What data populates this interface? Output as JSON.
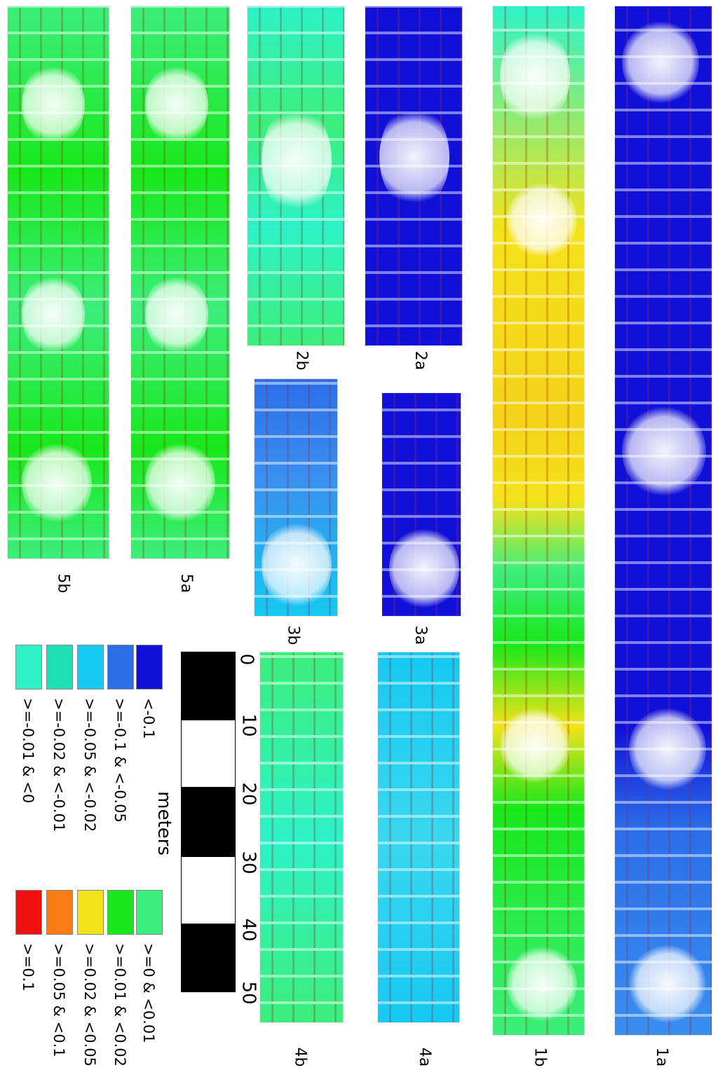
{
  "panels": [
    {
      "id": "1a",
      "label": "1a"
    },
    {
      "id": "1b",
      "label": "1b"
    },
    {
      "id": "2a",
      "label": "2a"
    },
    {
      "id": "2b",
      "label": "2b"
    },
    {
      "id": "3a",
      "label": "3a"
    },
    {
      "id": "3b",
      "label": "3b"
    },
    {
      "id": "4a",
      "label": "4a"
    },
    {
      "id": "4b",
      "label": "4b"
    },
    {
      "id": "5a",
      "label": "5a"
    },
    {
      "id": "5b",
      "label": "5b"
    }
  ],
  "scale": {
    "unit_label": "meters",
    "ticks": [
      "0",
      "10",
      "20",
      "30",
      "40",
      "50"
    ]
  },
  "legend": [
    {
      "label": "<-0.1",
      "color": "#1010d8"
    },
    {
      "label": ">=-0.1 & <-0.05",
      "color": "#2a6ee8"
    },
    {
      "label": ">=-0.05 & <-0.02",
      "color": "#16c8f2"
    },
    {
      "label": ">=-0.02 & <-0.01",
      "color": "#1ee0b4"
    },
    {
      "label": ">=-0.01 & <0",
      "color": "#2ef2c8"
    },
    {
      "label": ">=0 & <0.01",
      "color": "#3cee7c"
    },
    {
      "label": ">=0.01 & <0.02",
      "color": "#18e81a"
    },
    {
      "label": ">=0.02 & <0.05",
      "color": "#f4e21a"
    },
    {
      "label": ">=0.05 & <0.1",
      "color": "#fb7c12"
    },
    {
      "label": ">=0.1",
      "color": "#f01010"
    }
  ]
}
